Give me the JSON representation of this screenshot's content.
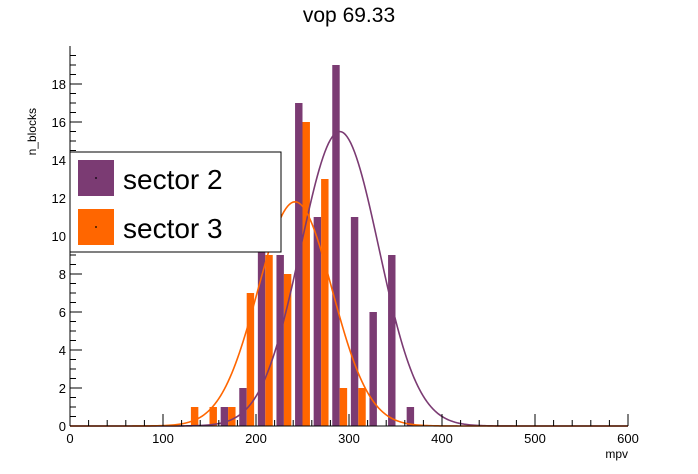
{
  "chart_data": {
    "type": "bar",
    "title": "vop 69.33",
    "xlabel": "mpv",
    "ylabel": "n_blocks",
    "xlim": [
      0,
      600
    ],
    "ylim": [
      0,
      20
    ],
    "x_ticks": [
      0,
      100,
      200,
      300,
      400,
      500,
      600
    ],
    "y_ticks": [
      0,
      2,
      4,
      6,
      8,
      10,
      12,
      14,
      16,
      18
    ],
    "bin_width": 20,
    "grid": false,
    "legend_position": "left",
    "series": [
      {
        "name": "sector 2",
        "color": "#7b3b73",
        "bins": [
          {
            "x": 170,
            "y": 1
          },
          {
            "x": 190,
            "y": 2
          },
          {
            "x": 210,
            "y": 11
          },
          {
            "x": 230,
            "y": 9
          },
          {
            "x": 250,
            "y": 17
          },
          {
            "x": 270,
            "y": 11
          },
          {
            "x": 290,
            "y": 19
          },
          {
            "x": 310,
            "y": 11
          },
          {
            "x": 330,
            "y": 6
          },
          {
            "x": 350,
            "y": 9
          },
          {
            "x": 370,
            "y": 1
          }
        ],
        "fit": {
          "type": "gauss",
          "amplitude": 15.5,
          "mean": 290,
          "sigma": 42
        }
      },
      {
        "name": "sector 3",
        "color": "#ff6600",
        "bins": [
          {
            "x": 130,
            "y": 1
          },
          {
            "x": 150,
            "y": 1
          },
          {
            "x": 170,
            "y": 1
          },
          {
            "x": 190,
            "y": 7
          },
          {
            "x": 210,
            "y": 9
          },
          {
            "x": 230,
            "y": 8
          },
          {
            "x": 250,
            "y": 16
          },
          {
            "x": 270,
            "y": 13
          },
          {
            "x": 290,
            "y": 2
          },
          {
            "x": 310,
            "y": 2
          }
        ],
        "fit": {
          "type": "gauss",
          "amplitude": 11.8,
          "mean": 242,
          "sigma": 40
        }
      }
    ]
  }
}
